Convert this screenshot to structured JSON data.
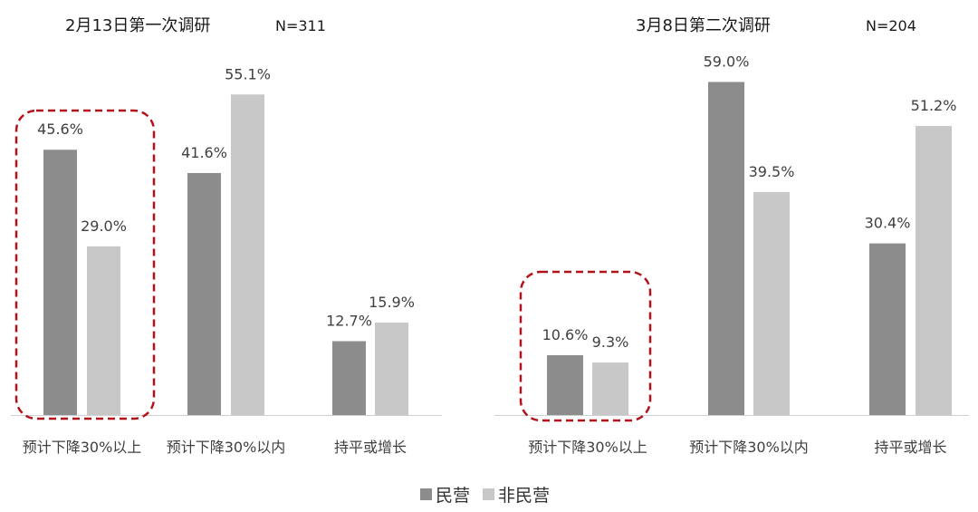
{
  "chart_data": [
    {
      "type": "bar",
      "title": "2月13日第一次调研",
      "sample": "N=311",
      "categories": [
        "预计下降30%以上",
        "预计下降30%以内",
        "持平或增长"
      ],
      "series": [
        {
          "name": "民营",
          "values": [
            45.6,
            41.6,
            12.7
          ],
          "labels": [
            "45.6%",
            "41.6%",
            "12.7%"
          ]
        },
        {
          "name": "非民营",
          "values": [
            29.0,
            55.1,
            15.9
          ],
          "labels": [
            "29.0%",
            "55.1%",
            "15.9%"
          ]
        }
      ],
      "unit": "%",
      "ylim": [
        0,
        60
      ],
      "grid": false,
      "highlight_category": "预计下降30%以上"
    },
    {
      "type": "bar",
      "title": "3月8日第二次调研",
      "sample": "N=204",
      "categories": [
        "预计下降30%以上",
        "预计下降30%以内",
        "持平或增长"
      ],
      "series": [
        {
          "name": "民营",
          "values": [
            10.6,
            59.0,
            30.4
          ],
          "labels": [
            "10.6%",
            "59.0%",
            "30.4%"
          ]
        },
        {
          "name": "非民营",
          "values": [
            9.3,
            39.5,
            51.2
          ],
          "labels": [
            "9.3%",
            "39.5%",
            "51.2%"
          ]
        }
      ],
      "unit": "%",
      "ylim": [
        0,
        60
      ],
      "grid": false,
      "highlight_category": "预计下降30%以上"
    }
  ],
  "legend": {
    "placement": "bottom-center",
    "items": [
      {
        "label": "民营",
        "color": "#8c8c8c"
      },
      {
        "label": "非民营",
        "color": "#c8c8c8"
      }
    ]
  },
  "colors": {
    "private": "#8c8c8c",
    "non_private": "#c8c8c8",
    "highlight": "#b3121b",
    "axis": "#d0d0d0"
  }
}
